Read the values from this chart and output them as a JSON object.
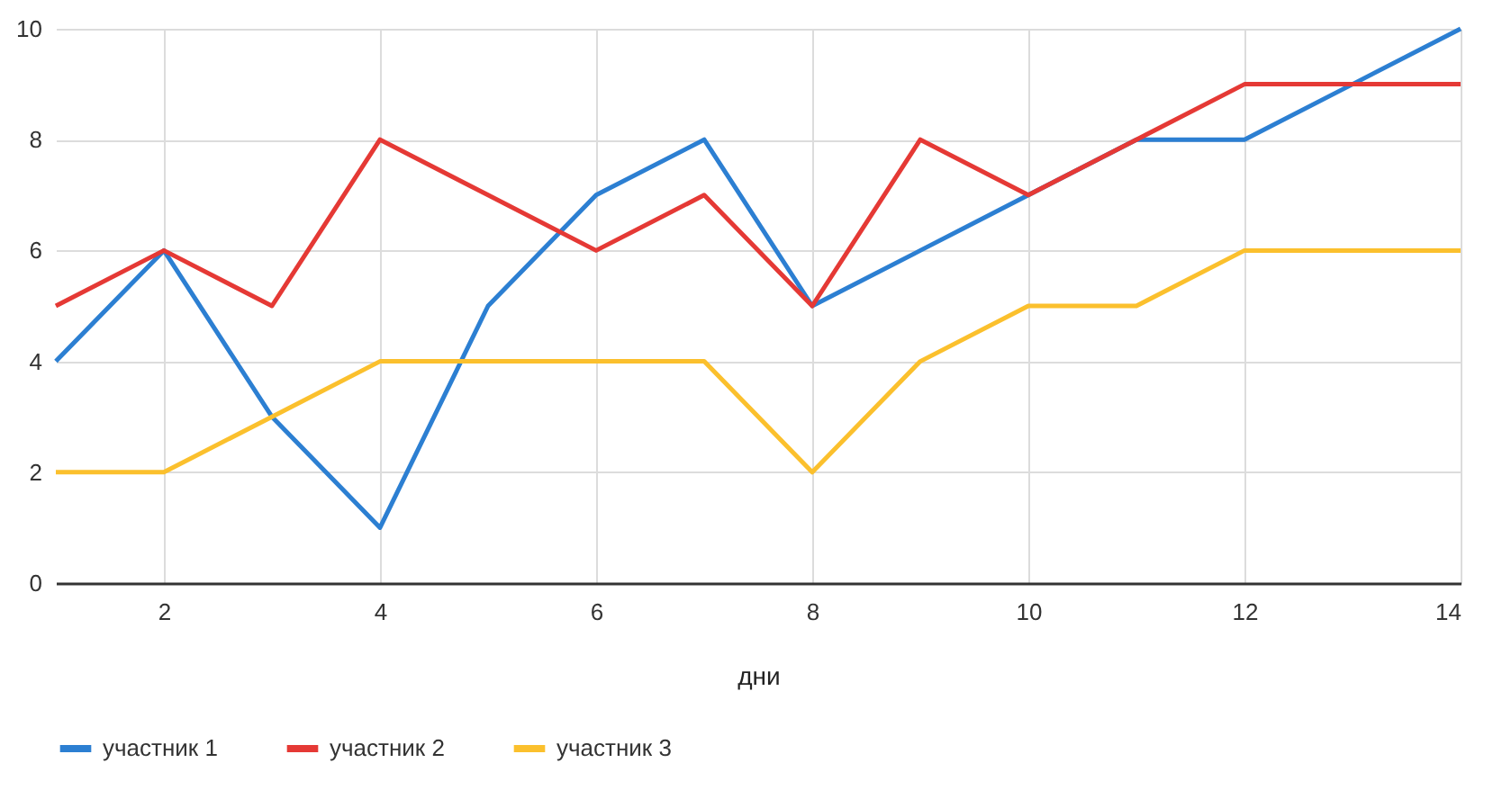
{
  "chart_data": {
    "type": "line",
    "xlabel": "дни",
    "x": [
      1,
      2,
      3,
      4,
      5,
      6,
      7,
      8,
      9,
      10,
      11,
      12,
      13,
      14
    ],
    "series": [
      {
        "name": "участник 1",
        "color": "#2c7fd2",
        "values": [
          4,
          6,
          3,
          1,
          5,
          7,
          8,
          5,
          6,
          7,
          8,
          8,
          9,
          10
        ]
      },
      {
        "name": "участник 2",
        "color": "#e53935",
        "values": [
          5,
          6,
          5,
          8,
          7,
          6,
          7,
          5,
          8,
          7,
          8,
          9,
          9,
          9
        ]
      },
      {
        "name": "участник 3",
        "color": "#fbc02d",
        "values": [
          2,
          2,
          3,
          4,
          4,
          4,
          4,
          2,
          4,
          5,
          5,
          6,
          6,
          6
        ]
      }
    ],
    "xlim": [
      1,
      14
    ],
    "xticks": [
      2,
      4,
      6,
      8,
      10,
      12,
      14
    ],
    "ylim": [
      0,
      10
    ],
    "yticks": [
      0,
      2,
      4,
      6,
      8,
      10
    ],
    "grid": true,
    "legend": "bottom",
    "marker": "none",
    "line_style": "solid"
  }
}
